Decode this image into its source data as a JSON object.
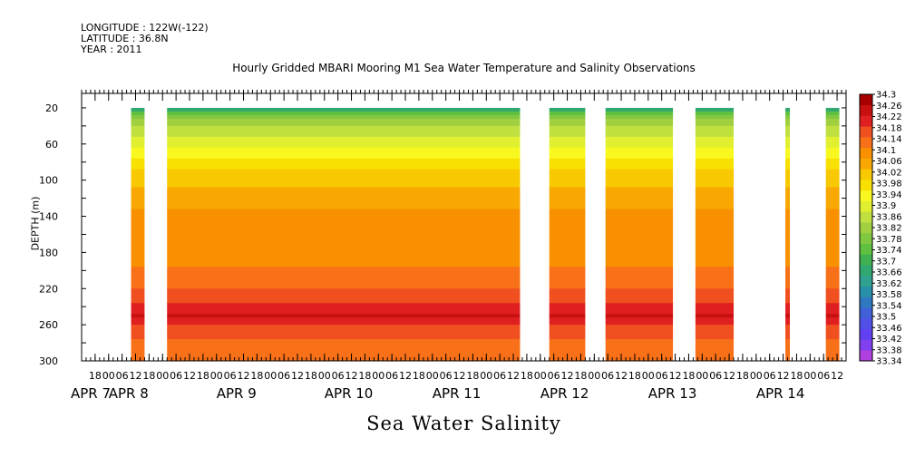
{
  "header": {
    "longitude": "LONGITUDE : 122W(-122)",
    "latitude": "LATITUDE : 36.8N",
    "year": "YEAR : 2011"
  },
  "chart_data": {
    "type": "heatmap",
    "title": "Hourly Gridded MBARI Mooring M1 Sea Water Temperature and Salinity Observations",
    "xlabel": "Sea Water Salinity",
    "ylabel": "DEPTH (m)",
    "y_ticks": [
      20,
      60,
      100,
      140,
      180,
      220,
      260,
      300
    ],
    "ylim": [
      300,
      4
    ],
    "x_unit": "hours from APR 7 00:00 (2011)",
    "xlim": [
      12,
      352
    ],
    "x_tick_labels": [
      {
        "hour": 18,
        "label": "18"
      },
      {
        "hour": 24,
        "label": "00"
      },
      {
        "hour": 30,
        "label": "06"
      },
      {
        "hour": 36,
        "label": "12"
      },
      {
        "hour": 42,
        "label": "18"
      },
      {
        "hour": 48,
        "label": "00"
      },
      {
        "hour": 54,
        "label": "06"
      },
      {
        "hour": 60,
        "label": "12"
      },
      {
        "hour": 66,
        "label": "18"
      },
      {
        "hour": 72,
        "label": "00"
      },
      {
        "hour": 78,
        "label": "06"
      },
      {
        "hour": 84,
        "label": "12"
      },
      {
        "hour": 90,
        "label": "18"
      },
      {
        "hour": 96,
        "label": "00"
      },
      {
        "hour": 102,
        "label": "06"
      },
      {
        "hour": 108,
        "label": "12"
      },
      {
        "hour": 114,
        "label": "18"
      },
      {
        "hour": 120,
        "label": "00"
      },
      {
        "hour": 126,
        "label": "06"
      },
      {
        "hour": 132,
        "label": "12"
      },
      {
        "hour": 138,
        "label": "18"
      },
      {
        "hour": 144,
        "label": "00"
      },
      {
        "hour": 150,
        "label": "06"
      },
      {
        "hour": 156,
        "label": "12"
      },
      {
        "hour": 162,
        "label": "18"
      },
      {
        "hour": 168,
        "label": "00"
      },
      {
        "hour": 174,
        "label": "06"
      },
      {
        "hour": 180,
        "label": "12"
      },
      {
        "hour": 186,
        "label": "18"
      },
      {
        "hour": 192,
        "label": "00"
      },
      {
        "hour": 198,
        "label": "06"
      },
      {
        "hour": 204,
        "label": "12"
      },
      {
        "hour": 210,
        "label": "18"
      },
      {
        "hour": 216,
        "label": "00"
      },
      {
        "hour": 222,
        "label": "06"
      },
      {
        "hour": 228,
        "label": "12"
      },
      {
        "hour": 234,
        "label": "18"
      },
      {
        "hour": 240,
        "label": "00"
      },
      {
        "hour": 246,
        "label": "06"
      },
      {
        "hour": 252,
        "label": "12"
      },
      {
        "hour": 258,
        "label": "18"
      },
      {
        "hour": 264,
        "label": "00"
      },
      {
        "hour": 270,
        "label": "06"
      },
      {
        "hour": 276,
        "label": "12"
      },
      {
        "hour": 282,
        "label": "18"
      },
      {
        "hour": 288,
        "label": "00"
      },
      {
        "hour": 294,
        "label": "06"
      },
      {
        "hour": 300,
        "label": "12"
      },
      {
        "hour": 306,
        "label": "18"
      },
      {
        "hour": 312,
        "label": "00"
      },
      {
        "hour": 318,
        "label": "06"
      },
      {
        "hour": 324,
        "label": "12"
      },
      {
        "hour": 330,
        "label": "18"
      },
      {
        "hour": 336,
        "label": "00"
      },
      {
        "hour": 342,
        "label": "06"
      },
      {
        "hour": 348,
        "label": "12"
      }
    ],
    "day_labels": [
      {
        "hour": 0,
        "label": "APR  7"
      },
      {
        "hour": 24,
        "label": "APR  8"
      },
      {
        "hour": 72,
        "label": "APR  9"
      },
      {
        "hour": 120,
        "label": "APR 10"
      },
      {
        "hour": 168,
        "label": "APR 11"
      },
      {
        "hour": 216,
        "label": "APR 12"
      },
      {
        "hour": 264,
        "label": "APR 13"
      },
      {
        "hour": 312,
        "label": "APR 14"
      }
    ],
    "data_segments": [
      {
        "start": 34,
        "end": 40
      },
      {
        "start": 50,
        "end": 207
      },
      {
        "start": 220,
        "end": 236
      },
      {
        "start": 245,
        "end": 275
      },
      {
        "start": 285,
        "end": 302
      },
      {
        "start": 325,
        "end": 327
      },
      {
        "start": 343,
        "end": 349
      }
    ],
    "depth_profile": [
      {
        "depth": 20,
        "salinity": 33.66
      },
      {
        "depth": 30,
        "salinity": 33.8
      },
      {
        "depth": 45,
        "salinity": 33.88
      },
      {
        "depth": 60,
        "salinity": 33.93
      },
      {
        "depth": 75,
        "salinity": 33.98
      },
      {
        "depth": 90,
        "salinity": 34.02
      },
      {
        "depth": 100,
        "salinity": 34.04
      },
      {
        "depth": 120,
        "salinity": 34.08
      },
      {
        "depth": 140,
        "salinity": 34.11
      },
      {
        "depth": 180,
        "salinity": 34.13
      },
      {
        "depth": 210,
        "salinity": 34.15
      },
      {
        "depth": 230,
        "salinity": 34.2
      },
      {
        "depth": 250,
        "salinity": 34.27
      },
      {
        "depth": 265,
        "salinity": 34.2
      },
      {
        "depth": 290,
        "salinity": 34.16
      },
      {
        "depth": 300,
        "salinity": 34.17
      }
    ],
    "colorbar": {
      "levels": [
        33.34,
        33.38,
        33.42,
        33.46,
        33.5,
        33.54,
        33.58,
        33.62,
        33.66,
        33.7,
        33.74,
        33.78,
        33.82,
        33.86,
        33.9,
        33.94,
        33.98,
        34.02,
        34.06,
        34.1,
        34.14,
        34.18,
        34.22,
        34.26,
        34.3
      ],
      "labels": [
        "33.34",
        "33.38",
        "33.42",
        "33.46",
        "33.5",
        "33.54",
        "33.58",
        "33.62",
        "33.66",
        "33.7",
        "33.74",
        "33.78",
        "33.82",
        "33.86",
        "33.9",
        "33.94",
        "33.98",
        "34.02",
        "34.06",
        "34.1",
        "34.14",
        "34.18",
        "34.22",
        "34.26",
        "34.3"
      ],
      "colors": [
        "#b040e0",
        "#8040f0",
        "#6040f0",
        "#5050e8",
        "#4060d8",
        "#3078c0",
        "#2890a8",
        "#30a090",
        "#30a870",
        "#40b050",
        "#60c040",
        "#80c840",
        "#a0d040",
        "#c0e040",
        "#e0f030",
        "#f8f820",
        "#f8e000",
        "#f8c800",
        "#f8a800",
        "#f89000",
        "#f87018",
        "#f05020",
        "#e02020",
        "#c81010",
        "#a80000"
      ]
    }
  }
}
